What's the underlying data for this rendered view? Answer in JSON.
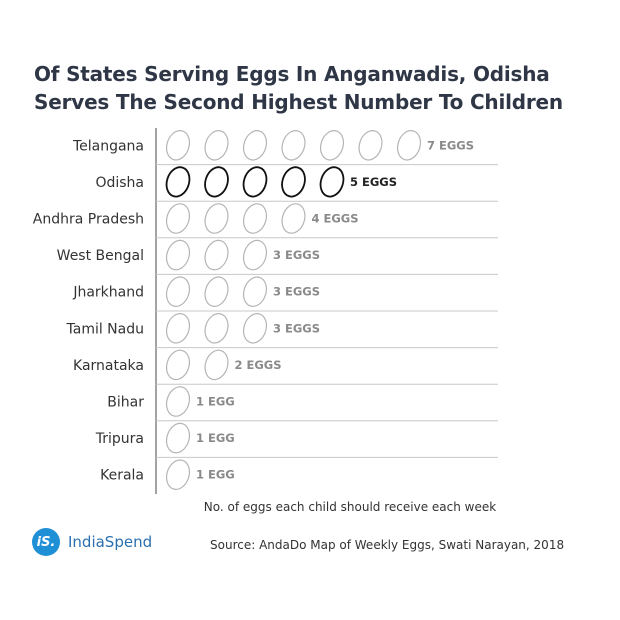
{
  "title_lines": [
    "Of States Serving Eggs In Anganwadis, Odisha",
    "Serves The Second Highest Number To Children"
  ],
  "axis_note": "No. of eggs each child should receive each week",
  "source": "Source: AndaDo Map of Weekly Eggs, Swati Narayan, 2018",
  "logo": {
    "mark": "iS.",
    "text": "IndiaSpend"
  },
  "colors": {
    "egg_stroke": "#b5b5b5",
    "egg_highlight": "#111111",
    "label_gray": "#8a8a8a",
    "logo_blue": "#1f8fd6"
  },
  "chart_data": {
    "type": "bar",
    "icon": "egg",
    "highlight": "Odisha",
    "categories": [
      "Telangana",
      "Odisha",
      "Andhra Pradesh",
      "West Bengal",
      "Jharkhand",
      "Tamil Nadu",
      "Karnataka",
      "Bihar",
      "Tripura",
      "Kerala"
    ],
    "values": [
      7,
      5,
      4,
      3,
      3,
      3,
      2,
      1,
      1,
      1
    ],
    "value_labels": [
      "7 EGGS",
      "5 EGGS",
      "4 EGGS",
      "3 EGGS",
      "3 EGGS",
      "3 EGGS",
      "2 EGGS",
      "1 EGG",
      "1 EGG",
      "1 EGG"
    ],
    "xlabel": "No. of eggs each child should receive each week"
  }
}
